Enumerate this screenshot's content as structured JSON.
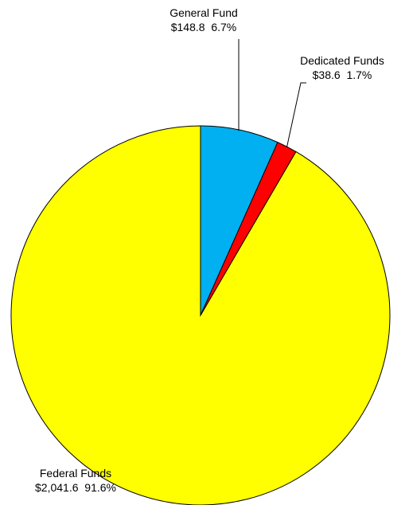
{
  "chart_data": {
    "type": "pie",
    "title": "",
    "slices": [
      {
        "name": "General Fund",
        "value": 148.8,
        "value_label": "$148.8",
        "percent_label": "6.7%",
        "color": "#00B0F0"
      },
      {
        "name": "Dedicated Funds",
        "value": 38.6,
        "value_label": "$38.6",
        "percent_label": "1.7%",
        "color": "#FF0000"
      },
      {
        "name": "Federal Funds",
        "value": 2041.6,
        "value_label": "$2,041.6",
        "percent_label": "91.6%",
        "color": "#FFFF00"
      }
    ],
    "start_angle": "12 o'clock",
    "direction": "clockwise",
    "outline_color": "#000000"
  }
}
